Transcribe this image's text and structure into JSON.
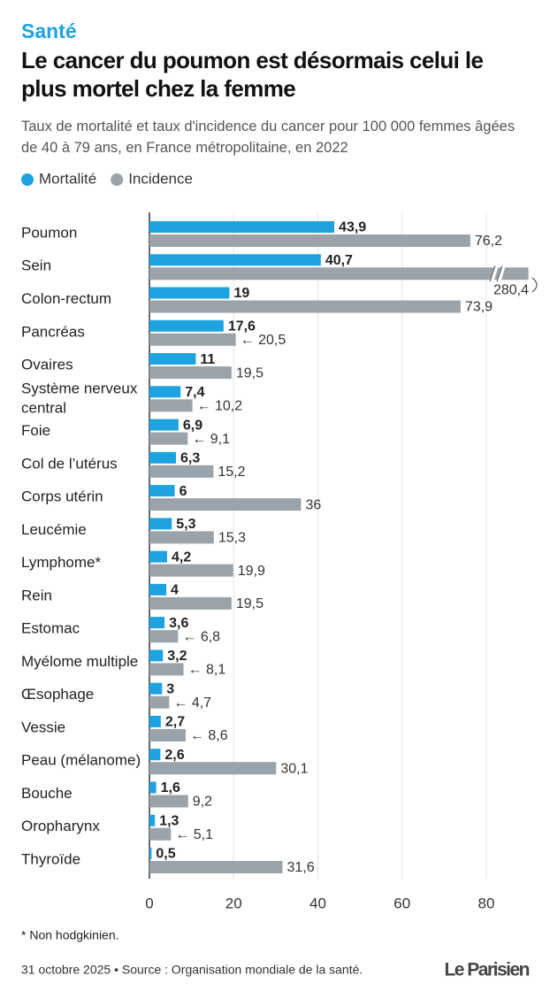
{
  "section": "Santé",
  "chart_data": {
    "type": "bar",
    "orientation": "horizontal",
    "title": "Le cancer du poumon est désormais celui le plus mortel chez la femme",
    "subtitle": "Taux de mortalité et taux d'incidence du cancer pour 100 000 femmes âgées de 40 à 79 ans, en France métropolitaine, en 2022",
    "categories": [
      "Poumon",
      "Sein",
      "Colon-rectum",
      "Pancréas",
      "Ovaires",
      "Système nerveux central",
      "Foie",
      "Col de l’utérus",
      "Corps utérin",
      "Leucémie",
      "Lymphome*",
      "Rein",
      "Estomac",
      "Myélome multiple",
      "Œsophage",
      "Vessie",
      "Peau (mélanome)",
      "Bouche",
      "Oropharynx",
      "Thyroïde"
    ],
    "series": [
      {
        "name": "Mortalité",
        "color": "#1ea3e0",
        "values": [
          43.9,
          40.7,
          19,
          17.6,
          11,
          7.4,
          6.9,
          6.3,
          6,
          5.3,
          4.2,
          4,
          3.6,
          3.2,
          3,
          2.7,
          2.6,
          1.6,
          1.3,
          0.5
        ],
        "value_labels": [
          "43,9",
          "40,7",
          "19",
          "17,6",
          "11",
          "7,4",
          "6,9",
          "6,3",
          "6",
          "5,3",
          "4,2",
          "4",
          "3,6",
          "3,2",
          "3",
          "2,7",
          "2,6",
          "1,6",
          "1,3",
          "0,5"
        ]
      },
      {
        "name": "Incidence",
        "color": "#9ba3aa",
        "values": [
          76.2,
          280.4,
          73.9,
          20.5,
          19.5,
          10.2,
          9.1,
          15.2,
          36,
          15.3,
          19.9,
          19.5,
          6.8,
          8.1,
          4.7,
          8.6,
          30.1,
          9.2,
          5.1,
          31.6
        ],
        "value_labels": [
          "76,2",
          "280,4",
          "73,9",
          "← 20,5",
          "19,5",
          "← 10,2",
          "← 9,1",
          "15,2",
          "36",
          "15,3",
          "19,9",
          "19,5",
          "← 6,8",
          "← 8,1",
          "← 4,7",
          "← 8,6",
          "30,1",
          "9,2",
          "← 5,1",
          "31,6"
        ]
      }
    ],
    "xlim": [
      0,
      90
    ],
    "xticks": [
      0,
      20,
      40,
      60,
      80
    ],
    "grid": true,
    "legend": "top-left"
  },
  "note": "* Non hodgkinien.",
  "source": "31 octobre 2025 • Source : Organisation mondiale de la santé.",
  "logo": "Le Parisien"
}
